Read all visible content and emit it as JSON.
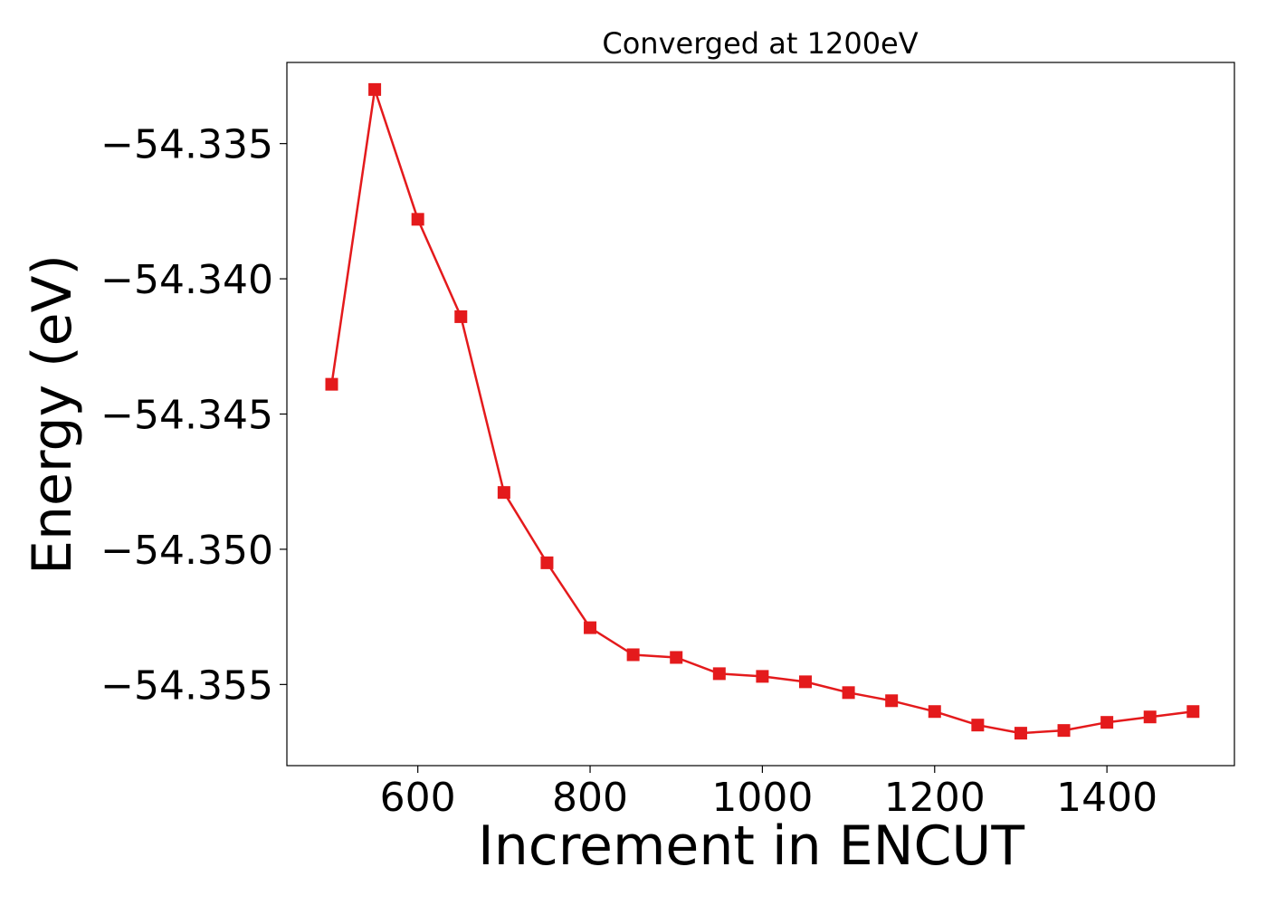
{
  "chart_data": {
    "type": "line",
    "title": "Converged at 1200eV",
    "xlabel": "Increment in ENCUT",
    "ylabel": "Energy (eV)",
    "xlim": [
      448,
      1548
    ],
    "ylim": [
      -54.358,
      -54.332
    ],
    "x_ticks": [
      600,
      800,
      1000,
      1200,
      1400
    ],
    "x_tick_labels": [
      "600",
      "800",
      "1000",
      "1200",
      "1400"
    ],
    "y_ticks": [
      -54.335,
      -54.34,
      -54.345,
      -54.35,
      -54.355
    ],
    "y_tick_labels": [
      "−54.335",
      "−54.340",
      "−54.345",
      "−54.350",
      "−54.355"
    ],
    "grid": false,
    "series": [
      {
        "color": "#e41a1c",
        "marker": "square",
        "x": [
          500,
          550,
          600,
          650,
          700,
          750,
          800,
          850,
          900,
          950,
          1000,
          1050,
          1100,
          1150,
          1200,
          1250,
          1300,
          1350,
          1400,
          1450,
          1500
        ],
        "y": [
          -54.3439,
          -54.333,
          -54.3378,
          -54.3414,
          -54.3479,
          -54.3505,
          -54.3529,
          -54.3539,
          -54.354,
          -54.3546,
          -54.3547,
          -54.3549,
          -54.3553,
          -54.3556,
          -54.356,
          -54.3565,
          -54.3568,
          -54.3567,
          -54.3564,
          -54.3562,
          -54.356
        ]
      }
    ]
  }
}
